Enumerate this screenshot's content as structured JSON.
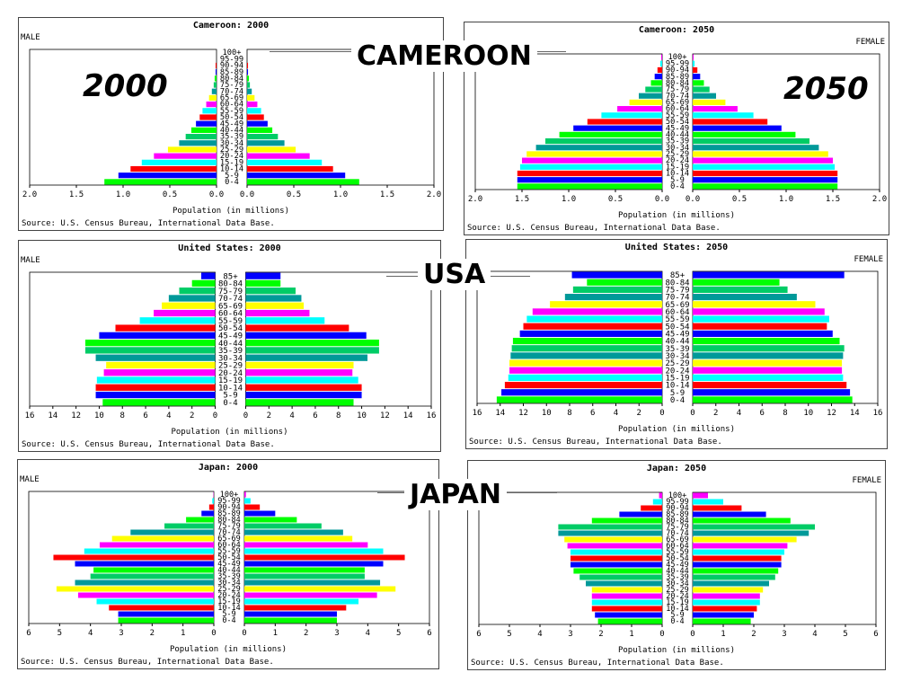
{
  "labels": {
    "country_cameroon": "CAMEROON",
    "country_usa": "USA",
    "country_japan": "JAPAN",
    "year_2000": "2000",
    "year_2050": "2050"
  },
  "colors": [
    "#00ff00",
    "#0000ff",
    "#ff0000",
    "#00ffff",
    "#ff00ff",
    "#ffff00",
    "#009999",
    "#00cc66"
  ],
  "chart_data": [
    {
      "type": "bar",
      "title": "Cameroon: 2000",
      "side_label": "MALE",
      "xlabel": "Population (in millions)",
      "source": "Source: U.S. Census Bureau, International Data Base.",
      "xlim": [
        0,
        2.0
      ],
      "ticks": [
        2.0,
        1.5,
        1.0,
        0.5,
        0.0,
        0.5,
        1.0,
        1.5,
        2.0
      ],
      "categories": [
        "100+",
        "95-99",
        "90-94",
        "85-89",
        "80-84",
        "75-79",
        "70-74",
        "65-69",
        "60-64",
        "55-59",
        "50-54",
        "45-49",
        "40-44",
        "35-39",
        "30-34",
        "25-29",
        "20-24",
        "15-19",
        "10-14",
        "5-9",
        "0-4"
      ],
      "series": [
        {
          "name": "Male",
          "values": [
            0,
            0,
            0.01,
            0.01,
            0.02,
            0.03,
            0.05,
            0.08,
            0.11,
            0.15,
            0.18,
            0.22,
            0.27,
            0.33,
            0.4,
            0.52,
            0.67,
            0.8,
            0.92,
            1.05,
            1.2
          ]
        },
        {
          "name": "Female",
          "values": [
            0,
            0,
            0.01,
            0.01,
            0.02,
            0.03,
            0.05,
            0.08,
            0.11,
            0.15,
            0.18,
            0.22,
            0.27,
            0.33,
            0.4,
            0.52,
            0.67,
            0.8,
            0.92,
            1.05,
            1.2
          ]
        }
      ]
    },
    {
      "type": "bar",
      "title": "Cameroon: 2050",
      "side_label": "FEMALE",
      "xlabel": "Population (in millions)",
      "source": "Source: U.S. Census Bureau, International Data Base.",
      "xlim": [
        0,
        2.0
      ],
      "ticks": [
        2.0,
        1.5,
        1.0,
        0.5,
        0.0,
        0.5,
        1.0,
        1.5,
        2.0
      ],
      "categories": [
        "100+",
        "95-99",
        "90-94",
        "85-89",
        "80-84",
        "75-79",
        "70-74",
        "65-69",
        "60-64",
        "55-59",
        "50-54",
        "45-49",
        "40-44",
        "35-39",
        "30-34",
        "25-29",
        "20-24",
        "15-19",
        "10-14",
        "5-9",
        "0-4"
      ],
      "series": [
        {
          "name": "Male",
          "values": [
            0.01,
            0.02,
            0.05,
            0.08,
            0.12,
            0.18,
            0.25,
            0.35,
            0.48,
            0.65,
            0.8,
            0.95,
            1.1,
            1.25,
            1.35,
            1.45,
            1.5,
            1.52,
            1.55,
            1.55,
            1.55
          ]
        },
        {
          "name": "Female",
          "values": [
            0.01,
            0.02,
            0.05,
            0.08,
            0.12,
            0.18,
            0.25,
            0.35,
            0.48,
            0.65,
            0.8,
            0.95,
            1.1,
            1.25,
            1.35,
            1.45,
            1.5,
            1.52,
            1.55,
            1.55,
            1.55
          ]
        }
      ]
    },
    {
      "type": "bar",
      "title": "United States: 2000",
      "side_label": "MALE",
      "xlabel": "Population (in millions)",
      "source": "Source: U.S. Census Bureau, International Data Base.",
      "xlim": [
        0,
        16
      ],
      "ticks": [
        16,
        14,
        12,
        10,
        8,
        6,
        4,
        2,
        0,
        2,
        4,
        6,
        8,
        10,
        12,
        14,
        16
      ],
      "categories": [
        "85+",
        "80-84",
        "75-79",
        "70-74",
        "65-69",
        "60-64",
        "55-59",
        "50-54",
        "45-49",
        "40-44",
        "35-39",
        "30-34",
        "25-29",
        "20-24",
        "15-19",
        "10-14",
        "5-9",
        "0-4"
      ],
      "series": [
        {
          "name": "Male",
          "values": [
            1.2,
            2.0,
            3.1,
            4.0,
            4.6,
            5.3,
            6.5,
            8.6,
            10.0,
            11.2,
            11.2,
            10.3,
            9.4,
            9.6,
            10.2,
            10.3,
            10.3,
            9.7
          ]
        },
        {
          "name": "Female",
          "values": [
            3.0,
            3.0,
            4.3,
            4.8,
            5.0,
            5.5,
            6.8,
            8.9,
            10.4,
            11.5,
            11.5,
            10.5,
            9.3,
            9.2,
            9.7,
            10.0,
            10.0,
            9.3
          ]
        }
      ]
    },
    {
      "type": "bar",
      "title": "United States: 2050",
      "side_label": "FEMALE",
      "xlabel": "Population (in millions)",
      "source": "Source: U.S. Census Bureau, International Data Base.",
      "xlim": [
        0,
        16
      ],
      "ticks": [
        16,
        14,
        12,
        10,
        8,
        6,
        4,
        2,
        0,
        2,
        4,
        6,
        8,
        10,
        12,
        14,
        16
      ],
      "categories": [
        "85+",
        "80-84",
        "75-79",
        "70-74",
        "65-69",
        "60-64",
        "55-59",
        "50-54",
        "45-49",
        "40-44",
        "35-39",
        "30-34",
        "25-29",
        "20-24",
        "15-19",
        "10-14",
        "5-9",
        "0-4"
      ],
      "series": [
        {
          "name": "Male",
          "values": [
            7.8,
            6.5,
            7.7,
            8.4,
            9.7,
            11.2,
            11.7,
            12.0,
            12.3,
            12.9,
            13.0,
            13.1,
            13.2,
            13.2,
            13.3,
            13.6,
            13.9,
            14.3
          ]
        },
        {
          "name": "Female",
          "values": [
            13.1,
            7.5,
            8.2,
            9.0,
            10.6,
            11.4,
            11.8,
            11.6,
            12.1,
            12.7,
            13.1,
            13.0,
            12.9,
            12.9,
            13.0,
            13.3,
            13.6,
            13.8
          ]
        }
      ]
    },
    {
      "type": "bar",
      "title": "Japan: 2000",
      "side_label": "MALE",
      "xlabel": "Population (in millions)",
      "source": "Source: U.S. Census Bureau, International Data Base.",
      "xlim": [
        0,
        6
      ],
      "ticks": [
        6,
        5,
        4,
        3,
        2,
        1,
        0,
        1,
        2,
        3,
        4,
        5,
        6
      ],
      "categories": [
        "100+",
        "95-99",
        "90-94",
        "85-89",
        "80-84",
        "75-79",
        "70-74",
        "65-69",
        "60-64",
        "55-59",
        "50-54",
        "45-49",
        "40-44",
        "35-39",
        "30-34",
        "25-29",
        "20-24",
        "15-19",
        "10-14",
        "5-9",
        "0-4"
      ],
      "series": [
        {
          "name": "Male",
          "values": [
            0.01,
            0.05,
            0.15,
            0.4,
            0.9,
            1.6,
            2.7,
            3.3,
            3.7,
            4.2,
            5.2,
            4.5,
            3.9,
            4.0,
            4.5,
            5.1,
            4.4,
            3.8,
            3.4,
            3.1,
            3.1
          ]
        },
        {
          "name": "Female",
          "values": [
            0.05,
            0.2,
            0.5,
            1.0,
            1.7,
            2.5,
            3.2,
            3.5,
            4.0,
            4.5,
            5.2,
            4.5,
            3.9,
            3.9,
            4.4,
            4.9,
            4.3,
            3.7,
            3.3,
            3.0,
            3.0
          ]
        }
      ]
    },
    {
      "type": "bar",
      "title": "Japan: 2050",
      "side_label": "FEMALE",
      "xlabel": "Population (in millions)",
      "source": "Source: U.S. Census Bureau, International Data Base.",
      "xlim": [
        0,
        6
      ],
      "ticks": [
        6,
        5,
        4,
        3,
        2,
        1,
        0,
        1,
        2,
        3,
        4,
        5,
        6
      ],
      "categories": [
        "100+",
        "95-99",
        "90-94",
        "85-89",
        "80-84",
        "75-79",
        "70-74",
        "65-69",
        "60-64",
        "55-59",
        "50-54",
        "45-49",
        "40-44",
        "35-39",
        "30-34",
        "25-29",
        "20-24",
        "15-19",
        "10-14",
        "5-9",
        "0-4"
      ],
      "series": [
        {
          "name": "Male",
          "values": [
            0.1,
            0.3,
            0.7,
            1.4,
            2.3,
            3.4,
            3.4,
            3.2,
            3.1,
            3.0,
            3.0,
            3.0,
            2.9,
            2.7,
            2.5,
            2.3,
            2.3,
            2.3,
            2.3,
            2.2,
            2.1
          ]
        },
        {
          "name": "Female",
          "values": [
            0.5,
            1.0,
            1.6,
            2.4,
            3.2,
            4.0,
            3.8,
            3.4,
            3.1,
            3.0,
            2.9,
            2.9,
            2.8,
            2.7,
            2.5,
            2.3,
            2.2,
            2.2,
            2.1,
            2.0,
            1.9
          ]
        }
      ]
    }
  ]
}
